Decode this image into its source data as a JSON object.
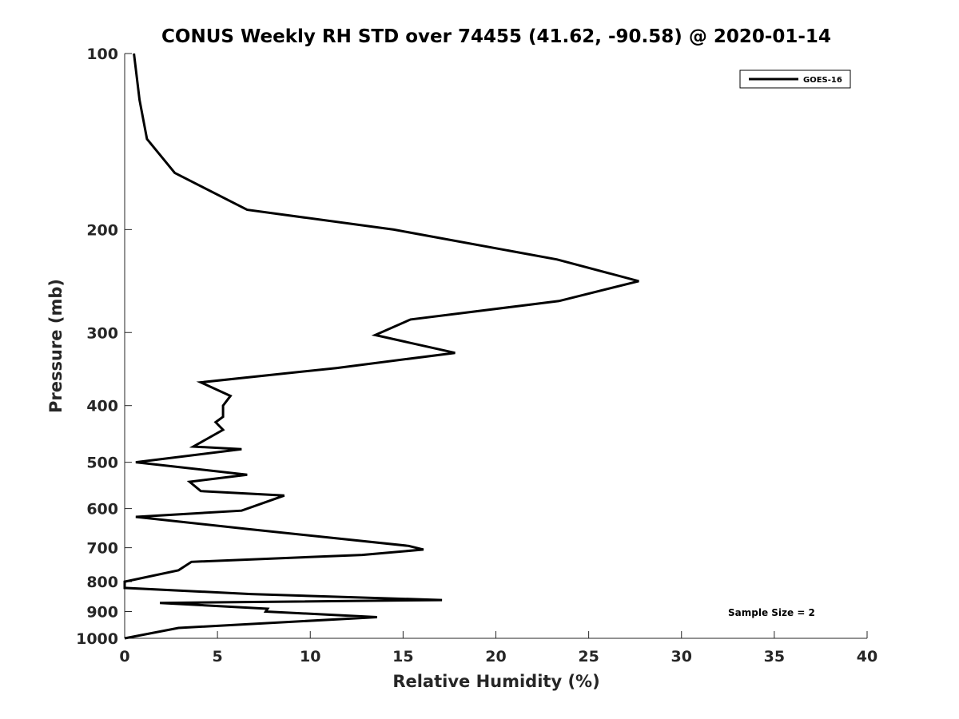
{
  "chart_data": {
    "type": "line",
    "title": "CONUS Weekly RH STD over 74455 (41.62, -90.58) @ 2020-01-14",
    "xlabel": "Relative Humidity (%)",
    "ylabel": "Pressure (mb)",
    "xlim": [
      0,
      40
    ],
    "ylim": [
      100,
      1000
    ],
    "y_scale": "log",
    "y_reversed": true,
    "x_ticks": [
      "0",
      "5",
      "10",
      "15",
      "20",
      "25",
      "30",
      "35",
      "40"
    ],
    "y_ticks": [
      "100",
      "200",
      "300",
      "400",
      "500",
      "600",
      "700",
      "800",
      "900",
      "1000"
    ],
    "grid": false,
    "legend_position": "top-right",
    "line_color": "#000000",
    "series": [
      {
        "name": "GOES-16",
        "x": [
          0.5,
          0.8,
          1.2,
          2.7,
          6.6,
          14.5,
          23.3,
          27.7,
          23.4,
          15.4,
          13.5,
          17.8,
          11.4,
          4.1,
          5.7,
          5.3,
          5.3,
          4.9,
          5.3,
          3.7,
          6.3,
          0.6,
          6.6,
          3.5,
          4.1,
          8.6,
          6.3,
          0.6,
          6.6,
          15.3,
          16.1,
          12.8,
          3.6,
          2.9,
          0.0,
          0.0,
          6.8,
          17.1,
          1.9,
          7.7,
          7.6,
          13.6,
          2.9,
          0.0
        ],
        "y": [
          100,
          120,
          140,
          160,
          185,
          200,
          225,
          245,
          265,
          285,
          303,
          325,
          345,
          365,
          385,
          400,
          418,
          427,
          440,
          470,
          475,
          500,
          525,
          540,
          560,
          570,
          605,
          620,
          650,
          695,
          705,
          720,
          740,
          765,
          800,
          820,
          840,
          860,
          870,
          890,
          900,
          920,
          960,
          1000
        ]
      }
    ],
    "annotations": [
      "Sample Size = 2"
    ]
  }
}
